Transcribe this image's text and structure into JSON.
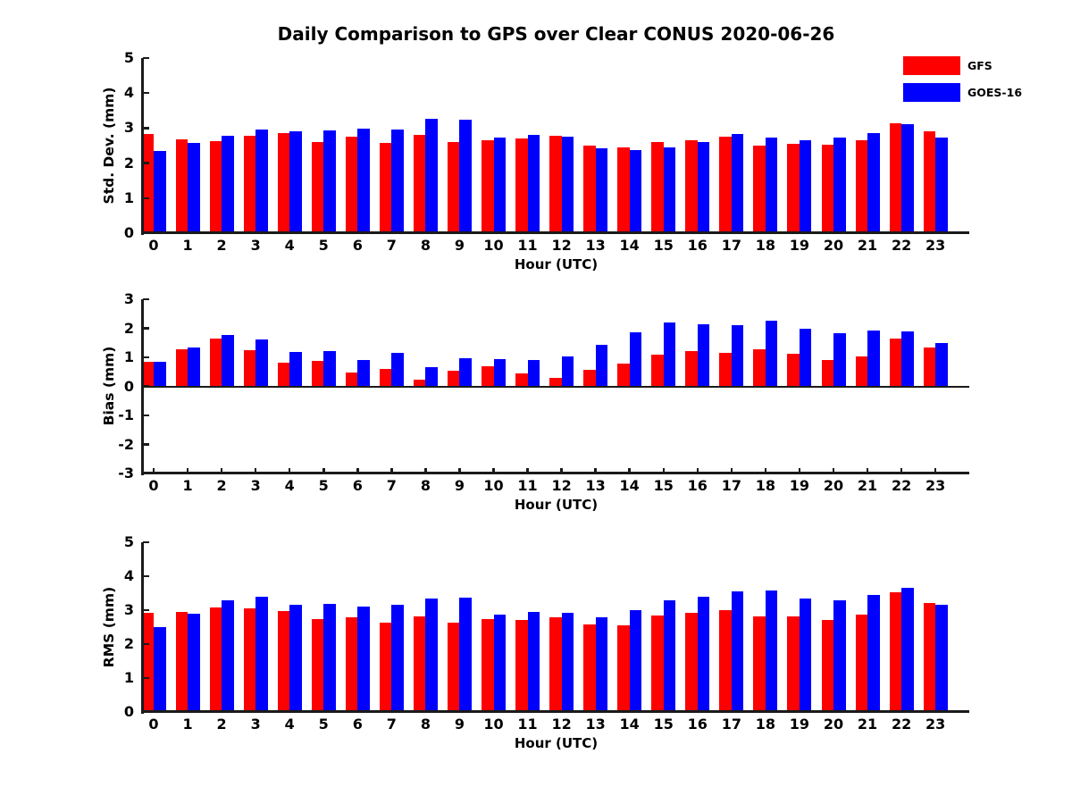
{
  "title": "Daily Comparison to GPS over Clear CONUS 2020-06-26",
  "colors": {
    "gfs_red": "#ff0000",
    "goes_blue": "#0000ff",
    "axis": "#1a1a1a"
  },
  "legend": {
    "position": "upper-right-outside-plot",
    "items": [
      {
        "label": "GFS",
        "color": "#ff0000",
        "swatch": "red-rect-icon"
      },
      {
        "label": "GOES-16",
        "color": "#0000ff",
        "swatch": "blue-rect-icon"
      }
    ]
  },
  "chart_data": [
    {
      "type": "bar",
      "panel": "std-dev",
      "ylabel": "Std. Dev. (mm)",
      "xlabel": "Hour (UTC)",
      "ylim": [
        0,
        5
      ],
      "yticks": [
        0,
        1,
        2,
        3,
        4,
        5
      ],
      "grid": false,
      "categories": [
        "0",
        "1",
        "2",
        "3",
        "4",
        "5",
        "6",
        "7",
        "8",
        "9",
        "10",
        "11",
        "12",
        "13",
        "14",
        "15",
        "16",
        "17",
        "18",
        "19",
        "20",
        "21",
        "22",
        "23"
      ],
      "series": [
        {
          "name": "GFS",
          "color": "#ff0000",
          "values": [
            2.83,
            2.68,
            2.63,
            2.78,
            2.86,
            2.6,
            2.76,
            2.58,
            2.81,
            2.61,
            2.66,
            2.7,
            2.78,
            2.51,
            2.45,
            2.61,
            2.65,
            2.76,
            2.49,
            2.56,
            2.52,
            2.66,
            3.13,
            2.92
          ]
        },
        {
          "name": "GOES-16",
          "color": "#0000ff",
          "values": [
            2.35,
            2.57,
            2.77,
            2.95,
            2.9,
            2.93,
            2.99,
            2.96,
            3.27,
            3.24,
            2.72,
            2.8,
            2.75,
            2.42,
            2.37,
            2.45,
            2.61,
            2.84,
            2.74,
            2.65,
            2.72,
            2.86,
            3.12,
            2.74
          ]
        }
      ]
    },
    {
      "type": "bar",
      "panel": "bias",
      "ylabel": "Bias (mm)",
      "xlabel": "Hour (UTC)",
      "ylim": [
        -3,
        3
      ],
      "yticks": [
        -3,
        -2,
        -1,
        0,
        1,
        2,
        3
      ],
      "grid": false,
      "categories": [
        "0",
        "1",
        "2",
        "3",
        "4",
        "5",
        "6",
        "7",
        "8",
        "9",
        "10",
        "11",
        "12",
        "13",
        "14",
        "15",
        "16",
        "17",
        "18",
        "19",
        "20",
        "21",
        "22",
        "23"
      ],
      "series": [
        {
          "name": "GFS",
          "color": "#ff0000",
          "values": [
            0.84,
            1.27,
            1.66,
            1.26,
            0.82,
            0.88,
            0.48,
            0.6,
            0.24,
            0.55,
            0.68,
            0.44,
            0.28,
            0.58,
            0.8,
            1.1,
            1.22,
            1.16,
            1.28,
            1.11,
            0.91,
            1.03,
            1.64,
            1.33
          ]
        },
        {
          "name": "GOES-16",
          "color": "#0000ff",
          "values": [
            0.84,
            1.33,
            1.77,
            1.62,
            1.2,
            1.23,
            0.92,
            1.15,
            0.65,
            0.98,
            0.94,
            0.91,
            1.02,
            1.44,
            1.85,
            2.2,
            2.14,
            2.1,
            2.27,
            1.98,
            1.84,
            1.92,
            1.89,
            1.5
          ]
        }
      ]
    },
    {
      "type": "bar",
      "panel": "rms",
      "ylabel": "RMS (mm)",
      "xlabel": "Hour (UTC)",
      "ylim": [
        0,
        5
      ],
      "yticks": [
        0,
        1,
        2,
        3,
        4,
        5
      ],
      "grid": false,
      "categories": [
        "0",
        "1",
        "2",
        "3",
        "4",
        "5",
        "6",
        "7",
        "8",
        "9",
        "10",
        "11",
        "12",
        "13",
        "14",
        "15",
        "16",
        "17",
        "18",
        "19",
        "20",
        "21",
        "22",
        "23"
      ],
      "series": [
        {
          "name": "GFS",
          "color": "#ff0000",
          "values": [
            2.92,
            2.94,
            3.09,
            3.05,
            2.97,
            2.74,
            2.79,
            2.64,
            2.82,
            2.62,
            2.74,
            2.71,
            2.78,
            2.59,
            2.54,
            2.83,
            2.92,
            3.01,
            2.82,
            2.81,
            2.7,
            2.86,
            3.52,
            3.22
          ]
        },
        {
          "name": "GOES-16",
          "color": "#0000ff",
          "values": [
            2.49,
            2.89,
            3.28,
            3.39,
            3.15,
            3.18,
            3.1,
            3.15,
            3.35,
            3.38,
            2.87,
            2.94,
            2.91,
            2.8,
            3.0,
            3.3,
            3.39,
            3.55,
            3.59,
            3.33,
            3.3,
            3.46,
            3.67,
            3.15
          ]
        }
      ]
    }
  ]
}
